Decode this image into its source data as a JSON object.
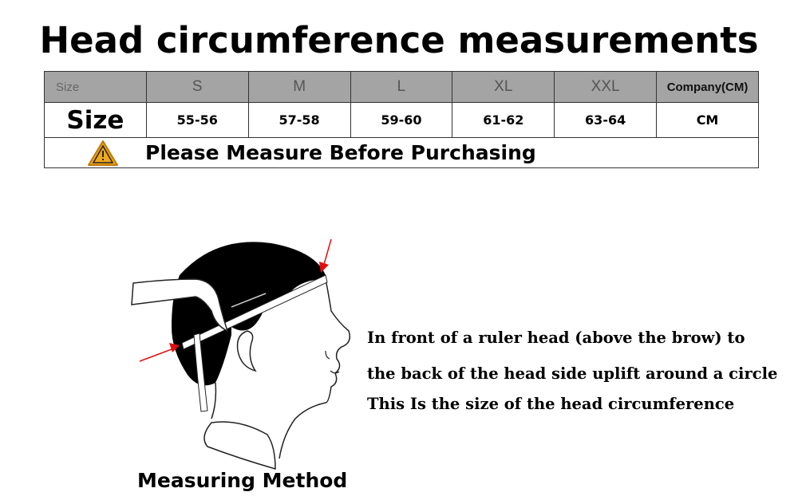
{
  "title": "Head circumference measurements",
  "table": {
    "header": [
      "Size",
      "S",
      "M",
      "L",
      "XL",
      "XXL",
      "Company(CM)"
    ],
    "values": [
      "Size",
      "55-56",
      "57-58",
      "59-60",
      "61-62",
      "63-64",
      "CM"
    ],
    "note": "Please Measure Before Purchasing",
    "note_icon": "warning-triangle-icon",
    "header_bg": "#a4a4a4",
    "warning_color": "#f0a818"
  },
  "description": [
    "In front of a ruler head (above the brow) to",
    "the back of the head side uplift around a circle",
    "This Is the size of the head circumference"
  ],
  "caption": "Measuring Method",
  "arrow_color": "#e01010"
}
